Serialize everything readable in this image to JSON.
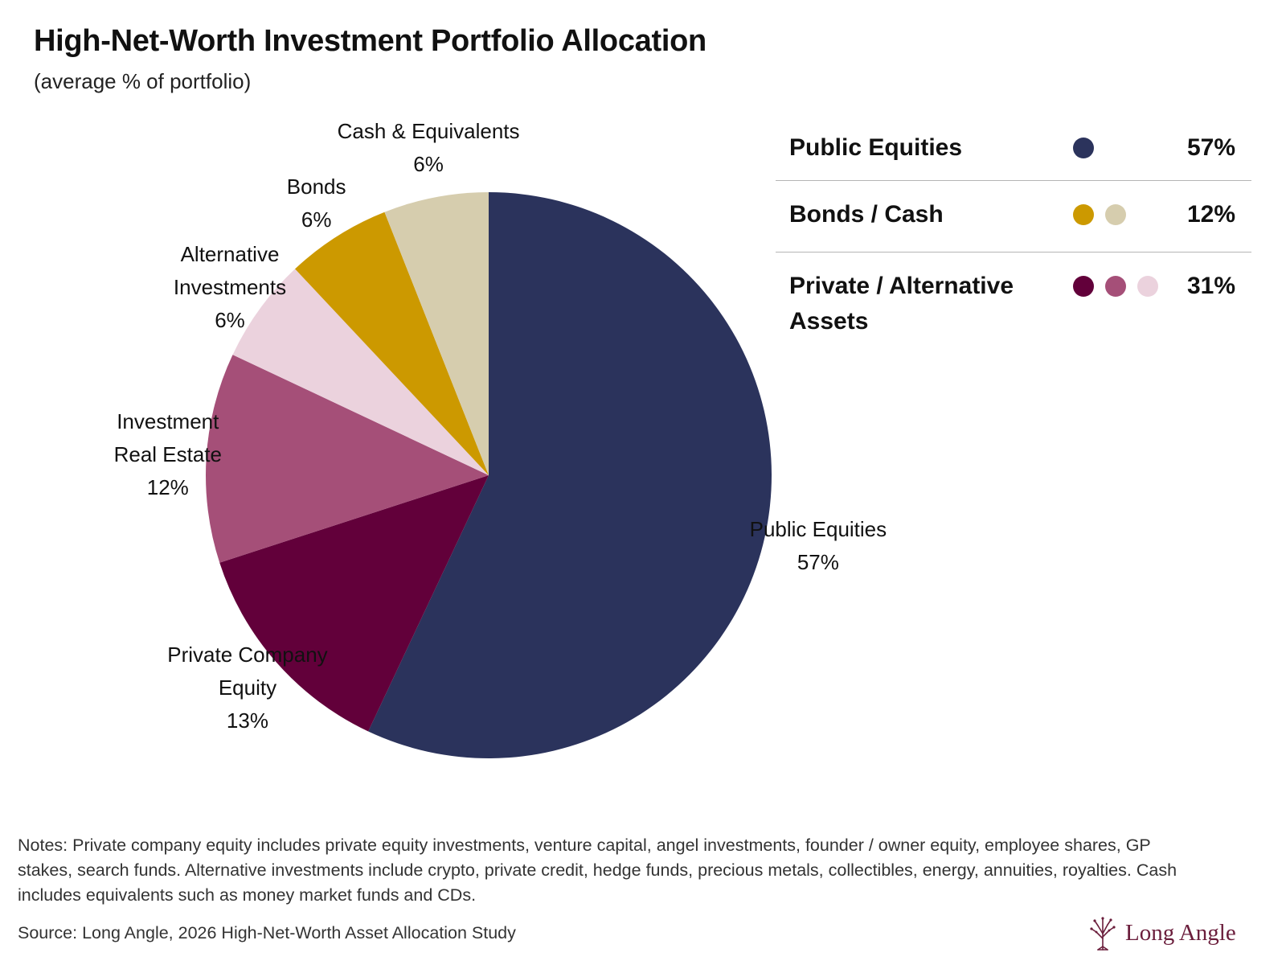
{
  "title": "High-Net-Worth Investment Portfolio Allocation",
  "subtitle": "(average % of portfolio)",
  "chart_data": {
    "type": "pie",
    "start_angle_deg": 0,
    "direction": "clockwise",
    "slices": [
      {
        "label_lines": [
          "Public Equities"
        ],
        "value_label": "57%",
        "value": 57,
        "color": "#2b335c"
      },
      {
        "label_lines": [
          "Private Company",
          "Equity"
        ],
        "value_label": "13%",
        "value": 13,
        "color": "#62003a"
      },
      {
        "label_lines": [
          "Investment",
          "Real Estate"
        ],
        "value_label": "12%",
        "value": 12,
        "color": "#a54f78"
      },
      {
        "label_lines": [
          "Alternative",
          "Investments"
        ],
        "value_label": "6%",
        "value": 6,
        "color": "#ebd2dd"
      },
      {
        "label_lines": [
          "Bonds"
        ],
        "value_label": "6%",
        "value": 6,
        "color": "#cc9900"
      },
      {
        "label_lines": [
          "Cash & Equivalents"
        ],
        "value_label": "6%",
        "value": 6,
        "color": "#d6cdae"
      }
    ]
  },
  "summary": [
    {
      "name": "Public Equities",
      "value": "57%",
      "dots": [
        "#2b335c"
      ]
    },
    {
      "name": "Bonds / Cash",
      "value": "12%",
      "dots": [
        "#cc9900",
        "#d6cdae"
      ]
    },
    {
      "name": "Private / Alternative Assets",
      "value": "31%",
      "dots": [
        "#62003a",
        "#a54f78",
        "#ebd2dd"
      ]
    }
  ],
  "notes": "Notes: Private company equity includes private equity investments, venture capital, angel investments, founder / owner equity, employee shares, GP stakes, search funds. Alternative investments include crypto, private credit, hedge funds, precious metals, collectibles, energy, annuities, royalties. Cash includes equivalents such as money market funds and CDs.",
  "source": "Source: Long Angle, 2026 High-Net-Worth Asset Allocation Study",
  "logo": {
    "text": "Long Angle",
    "icon": "tree-icon",
    "color": "#6b1e3c"
  }
}
